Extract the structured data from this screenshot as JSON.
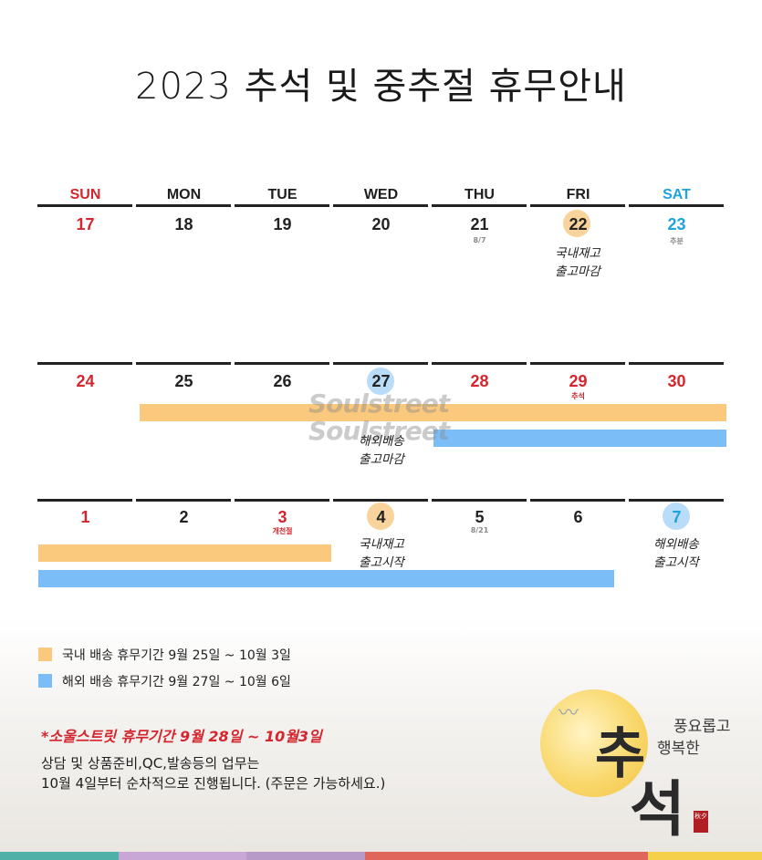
{
  "title": "2023 추석 및 중추절 휴무안내",
  "weekdays": [
    "SUN",
    "MON",
    "TUE",
    "WED",
    "THU",
    "FRI",
    "SAT"
  ],
  "week1": {
    "dates": [
      "17",
      "18",
      "19",
      "20",
      "21",
      "22",
      "23"
    ],
    "sub_thu": "8/7",
    "sub_sat": "추분",
    "note_fri": [
      "국내재고",
      "출고마감"
    ]
  },
  "week2": {
    "dates": [
      "24",
      "25",
      "26",
      "27",
      "28",
      "29",
      "30"
    ],
    "sub_fri": "추석",
    "note_wed": [
      "해외배송",
      "출고마감"
    ],
    "watermark": [
      "Soulstreet",
      "Soulstreet"
    ]
  },
  "week3": {
    "dates": [
      "1",
      "2",
      "3",
      "4",
      "5",
      "6",
      "7"
    ],
    "sub_tue": "개천절",
    "sub_thu": "8/21",
    "note_wed": [
      "국내재고",
      "출고시작"
    ],
    "note_sat": [
      "해외배송",
      "출고시작"
    ]
  },
  "legend": {
    "domestic": "국내 배송 휴무기간 9월 25일 ~ 10월 3일",
    "international": "해외 배송 휴무기간 9월 27일 ~ 10월 6일"
  },
  "notice": {
    "headline": "*소울스트릿 휴무기간 9월 28일 ~ 10월3일",
    "line1": "상담 및 상품준비,QC,발송등의 업무는",
    "line2": "10월 4일부터 순차적으로 진행됩니다. (주문은 가능하세요.)"
  },
  "decoration": {
    "big_char1": "추",
    "big_char2": "석",
    "sub_line1": "풍요롭고",
    "sub_line2": "행복한",
    "seal": "秋夕"
  },
  "colors": {
    "sunday": "#d3262e",
    "saturday": "#1ea3dc",
    "domestic": "#fbc97d",
    "international": "#7bbdf7"
  }
}
